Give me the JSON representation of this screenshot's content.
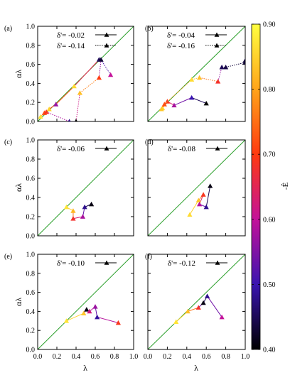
{
  "figure": {
    "ylabel": "αλ",
    "xlabel": "λ",
    "colorbar": {
      "label": "-Ê",
      "min": 0.4,
      "max": 0.9,
      "ticks": [
        "0.40",
        "0.50",
        "0.60",
        "0.70",
        "0.80",
        "0.90"
      ],
      "colormap": [
        "#000000",
        "#3a14b0",
        "#c4129a",
        "#ff3a10",
        "#ffa41a",
        "#ffff40"
      ]
    },
    "reference_line": {
      "color": "#2ca02c"
    }
  },
  "chart_data": [
    {
      "type": "scatter",
      "panel": "(a)",
      "xlim": [
        0,
        1
      ],
      "ylim": [
        0,
        1
      ],
      "xticks": [
        "0.0",
        "0.2",
        "0.4",
        "0.6",
        "0.8",
        "1.0"
      ],
      "yticks": [
        "0.0",
        "0.2",
        "0.4",
        "0.6",
        "0.8",
        "1.0"
      ],
      "series": [
        {
          "name": "δ'= -0.02",
          "style": "solid",
          "points": [
            [
              0.03,
              0.05,
              0.87
            ],
            [
              0.07,
              0.09,
              0.72
            ],
            [
              0.12,
              0.13,
              0.85
            ],
            [
              0.19,
              0.18,
              0.57
            ],
            [
              0.38,
              0.37,
              0.86
            ],
            [
              0.64,
              0.65,
              0.45
            ]
          ]
        },
        {
          "name": "δ'= -0.14",
          "style": "dotted",
          "points": [
            [
              0.09,
              0.1,
              0.69
            ],
            [
              0.33,
              0.0,
              0.48
            ],
            [
              0.4,
              0.0,
              0.4
            ],
            [
              0.44,
              0.3,
              0.83
            ],
            [
              0.64,
              0.46,
              0.7
            ],
            [
              0.66,
              0.65,
              0.43
            ],
            [
              0.76,
              0.49,
              0.6
            ]
          ]
        }
      ]
    },
    {
      "type": "scatter",
      "panel": "(b)",
      "xlim": [
        0,
        1
      ],
      "ylim": [
        0,
        1
      ],
      "xticks": [
        "0.0",
        "0.2",
        "0.4",
        "0.6",
        "0.8",
        "1.0"
      ],
      "yticks": [
        "0.0",
        "0.2",
        "0.4",
        "0.6",
        "0.8",
        "1.0"
      ],
      "series": [
        {
          "name": "δ'= -0.04",
          "style": "solid",
          "points": [
            [
              0.15,
              0.14,
              0.86
            ],
            [
              0.2,
              0.21,
              0.69
            ],
            [
              0.27,
              0.17,
              0.58
            ],
            [
              0.45,
              0.25,
              0.5
            ],
            [
              0.6,
              0.19,
              0.4
            ]
          ]
        },
        {
          "name": "δ'= -0.16",
          "style": "dotted",
          "points": [
            [
              0.14,
              0.13,
              0.84
            ],
            [
              0.17,
              0.18,
              0.72
            ],
            [
              0.45,
              0.44,
              0.86
            ],
            [
              0.53,
              0.46,
              0.83
            ],
            [
              0.72,
              0.42,
              0.68
            ],
            [
              0.76,
              0.57,
              0.45
            ],
            [
              0.8,
              0.57,
              0.44
            ],
            [
              1.0,
              0.62,
              0.43
            ],
            [
              1.0,
              0.64,
              0.43
            ]
          ]
        }
      ]
    },
    {
      "type": "scatter",
      "panel": "(c)",
      "xlim": [
        0,
        1
      ],
      "ylim": [
        0,
        1
      ],
      "xticks": [
        "0.0",
        "0.2",
        "0.4",
        "0.6",
        "0.8",
        "1.0"
      ],
      "yticks": [
        "0.0",
        "0.2",
        "0.4",
        "0.6",
        "0.8",
        "1.0"
      ],
      "series": [
        {
          "name": "δ'= -0.06",
          "style": "solid",
          "points": [
            [
              0.3,
              0.3,
              0.87
            ],
            [
              0.37,
              0.26,
              0.82
            ],
            [
              0.37,
              0.18,
              0.68
            ],
            [
              0.47,
              0.2,
              0.58
            ],
            [
              0.49,
              0.3,
              0.48
            ],
            [
              0.56,
              0.33,
              0.41
            ]
          ]
        }
      ]
    },
    {
      "type": "scatter",
      "panel": "(d)",
      "xlim": [
        0,
        1
      ],
      "ylim": [
        0,
        1
      ],
      "xticks": [
        "0.0",
        "0.2",
        "0.4",
        "0.6",
        "0.8",
        "1.0"
      ],
      "yticks": [
        "0.0",
        "0.2",
        "0.4",
        "0.6",
        "0.8",
        "1.0"
      ],
      "series": [
        {
          "name": "δ'= -0.08",
          "style": "solid",
          "points": [
            [
              0.43,
              0.22,
              0.86
            ],
            [
              0.52,
              0.37,
              0.84
            ],
            [
              0.57,
              0.43,
              0.69
            ],
            [
              0.53,
              0.33,
              0.59
            ],
            [
              0.6,
              0.3,
              0.48
            ],
            [
              0.64,
              0.52,
              0.41
            ]
          ]
        }
      ]
    },
    {
      "type": "scatter",
      "panel": "(e)",
      "xlim": [
        0,
        1
      ],
      "ylim": [
        0,
        1
      ],
      "xticks": [
        "0.0",
        "0.2",
        "0.4",
        "0.6",
        "0.8",
        "1.0"
      ],
      "yticks": [
        "0.0",
        "0.2",
        "0.4",
        "0.6",
        "0.8",
        "1.0"
      ],
      "series": [
        {
          "name": "δ'= -0.10",
          "style": "solid",
          "points": [
            [
              0.3,
              0.3,
              0.87
            ],
            [
              0.48,
              0.38,
              0.84
            ],
            [
              0.51,
              0.42,
              0.41
            ],
            [
              0.54,
              0.4,
              0.62
            ],
            [
              0.6,
              0.45,
              0.57
            ],
            [
              0.62,
              0.34,
              0.49
            ],
            [
              0.84,
              0.28,
              0.69
            ]
          ]
        }
      ]
    },
    {
      "type": "scatter",
      "panel": "(f)",
      "xlim": [
        0,
        1
      ],
      "ylim": [
        0,
        1
      ],
      "xticks": [
        "0.0",
        "0.2",
        "0.4",
        "0.6",
        "0.8",
        "1.0"
      ],
      "yticks": [
        "0.0",
        "0.2",
        "0.4",
        "0.6",
        "0.8",
        "1.0"
      ],
      "series": [
        {
          "name": "δ'= -0.12",
          "style": "solid",
          "points": [
            [
              0.29,
              0.29,
              0.87
            ],
            [
              0.41,
              0.4,
              0.83
            ],
            [
              0.52,
              0.44,
              0.68
            ],
            [
              0.57,
              0.49,
              0.41
            ],
            [
              0.61,
              0.56,
              0.48
            ],
            [
              0.76,
              0.34,
              0.6
            ]
          ]
        }
      ]
    }
  ]
}
